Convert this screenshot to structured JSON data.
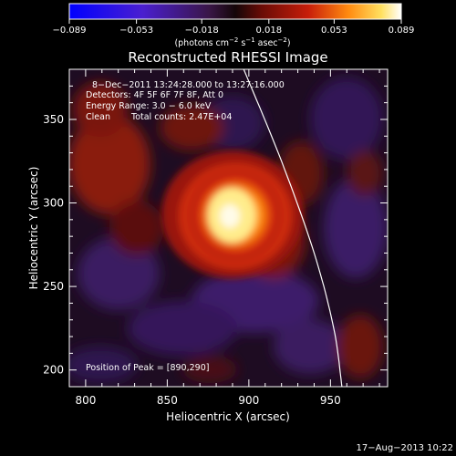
{
  "chart_data": {
    "type": "heatmap",
    "title": "Reconstructed RHESSI Image",
    "xlabel": "Heliocentric X (arcsec)",
    "ylabel": "Heliocentric Y (arcsec)",
    "xlim": [
      790,
      985
    ],
    "ylim": [
      190,
      380
    ],
    "x_ticks": [
      800,
      850,
      900,
      950
    ],
    "y_ticks": [
      200,
      250,
      300,
      350
    ],
    "colorbar": {
      "range": [
        -0.089,
        0.089
      ],
      "ticks": [
        "−0.089",
        "−0.053",
        "−0.018",
        "0.018",
        "0.053",
        "0.089"
      ],
      "unit_main": "(photons cm",
      "unit_sup1": "−2",
      "unit_s": " s",
      "unit_sup2": "−1",
      "unit_asec": " asec",
      "unit_sup3": "−2",
      "unit_close": ")"
    },
    "annotations": {
      "time_range": "8−Dec−2011 13:24:28.000 to 13:27:16.000",
      "detectors": "Detectors: 4F 5F 6F 7F 8F, Att 0",
      "energy": "Energy Range: 3.0 − 6.0 keV",
      "clean_label": "Clean",
      "total_counts": "Total counts: 2.47E+04",
      "peak": "Position of Peak = [890,290]"
    },
    "peak_position": [
      890,
      290
    ],
    "limb": [
      [
        896,
        382
      ],
      [
        920,
        325
      ],
      [
        940,
        270
      ],
      [
        952,
        225
      ],
      [
        957,
        190
      ]
    ]
  },
  "footer": {
    "timestamp": "17−Aug−2013 10:22"
  }
}
